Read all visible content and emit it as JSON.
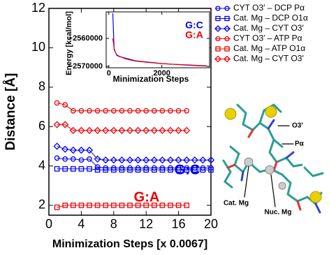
{
  "chart_data": [
    {
      "type": "line",
      "xlabel": "Minimization Steps [x 0.0067]",
      "ylabel": "Distance [Å]",
      "x": [
        1,
        2,
        3,
        4,
        5,
        6,
        7,
        8,
        9,
        10,
        11,
        12,
        13,
        14,
        15,
        16,
        17,
        18,
        19,
        20
      ],
      "xlim": [
        0,
        20
      ],
      "xticks": [
        0,
        4,
        8,
        12,
        16,
        20
      ],
      "ylim": [
        1.5,
        12
      ],
      "yticks": [
        2,
        4,
        6,
        8,
        10,
        12
      ],
      "series": [
        {
          "name": "CYT O3′ – DCP Pα",
          "color": "#0000ee",
          "marker": "circle",
          "values": [
            4.4,
            4.35,
            4.35,
            4.3,
            4.35,
            3.95,
            3.9,
            3.9,
            3.9,
            3.9,
            3.9,
            3.9,
            3.9,
            3.9,
            3.9,
            3.9,
            3.9,
            3.9,
            3.9,
            3.9
          ]
        },
        {
          "name": "Cat. Mg – DCP O1α",
          "color": "#0000ee",
          "marker": "square",
          "values": [
            3.85,
            3.85,
            3.85,
            3.85,
            3.85,
            3.8,
            3.8,
            3.8,
            3.8,
            3.8,
            3.8,
            3.8,
            3.8,
            3.8,
            3.8,
            3.8,
            3.8,
            3.8,
            3.8,
            3.8
          ]
        },
        {
          "name": "Cat. Mg – CYT O3′",
          "color": "#0000ee",
          "marker": "diamond",
          "values": [
            5.0,
            4.85,
            4.8,
            4.8,
            4.8,
            4.35,
            4.3,
            4.3,
            4.3,
            4.3,
            4.3,
            4.3,
            4.3,
            4.3,
            4.3,
            4.3,
            4.3,
            4.3,
            4.3,
            4.3
          ]
        },
        {
          "name": "CYT O3′ – ATP Pα",
          "color": "#ee0000",
          "marker": "circle",
          "values": [
            7.2,
            7.1,
            6.8,
            6.8,
            6.8,
            6.8,
            6.8,
            6.8,
            6.8,
            6.8,
            6.8,
            6.8,
            6.8,
            6.8,
            6.8,
            6.8,
            6.8,
            null,
            null,
            null
          ]
        },
        {
          "name": "Cat. Mg – ATP O1α",
          "color": "#ee0000",
          "marker": "square",
          "values": [
            1.9,
            2.0,
            2.0,
            2.0,
            2.0,
            2.0,
            2.0,
            2.0,
            2.0,
            2.0,
            2.0,
            2.0,
            2.0,
            2.0,
            2.0,
            2.0,
            2.0,
            null,
            null,
            null
          ]
        },
        {
          "name": "Cat. Mg – CYT O3′",
          "color": "#ee0000",
          "marker": "diamond",
          "values": [
            6.1,
            6.1,
            5.8,
            5.8,
            5.8,
            5.8,
            5.8,
            5.8,
            5.8,
            5.8,
            5.8,
            5.8,
            5.8,
            5.8,
            5.8,
            5.8,
            5.8,
            null,
            null,
            null
          ]
        }
      ],
      "annotations": [
        {
          "text": "G:C",
          "color": "#0000ee"
        },
        {
          "text": "G:A",
          "color": "#ee0000"
        }
      ]
    },
    {
      "type": "line",
      "xlabel": "Minimization Steps",
      "ylabel": "Energy [kcal/mol]",
      "x": [
        150,
        200,
        250,
        300,
        400,
        600,
        800,
        1000,
        1500,
        2000,
        2500,
        3000,
        3700
      ],
      "xlim": [
        -100,
        3800
      ],
      "xticks": [
        0,
        2000
      ],
      "ylim": [
        -2570500,
        -2550500
      ],
      "yticks": [
        {
          "value": -2560000,
          "label": "−2560000"
        },
        {
          "value": -2570000,
          "label": "−2570000"
        }
      ],
      "series": [
        {
          "name": "G:C",
          "color": "#0000ee",
          "values": [
            -2551000,
            -2564000,
            -2565000,
            -2566000,
            -2566500,
            -2567000,
            -2567500,
            -2568000,
            -2568500,
            -2569000,
            -2569300,
            -2569500,
            -2569800
          ]
        },
        {
          "name": "G:A",
          "color": "#ee0000",
          "values": [
            -2560000,
            -2563500,
            -2565000,
            -2565800,
            -2566400,
            -2567200,
            -2567700,
            -2568100,
            -2568600,
            -2569000,
            -2569300,
            -2569600,
            -2569900
          ]
        }
      ]
    }
  ],
  "image_labels": [
    "O3′",
    "Pα",
    "Cat. Mg",
    "Nuc. Mg"
  ]
}
